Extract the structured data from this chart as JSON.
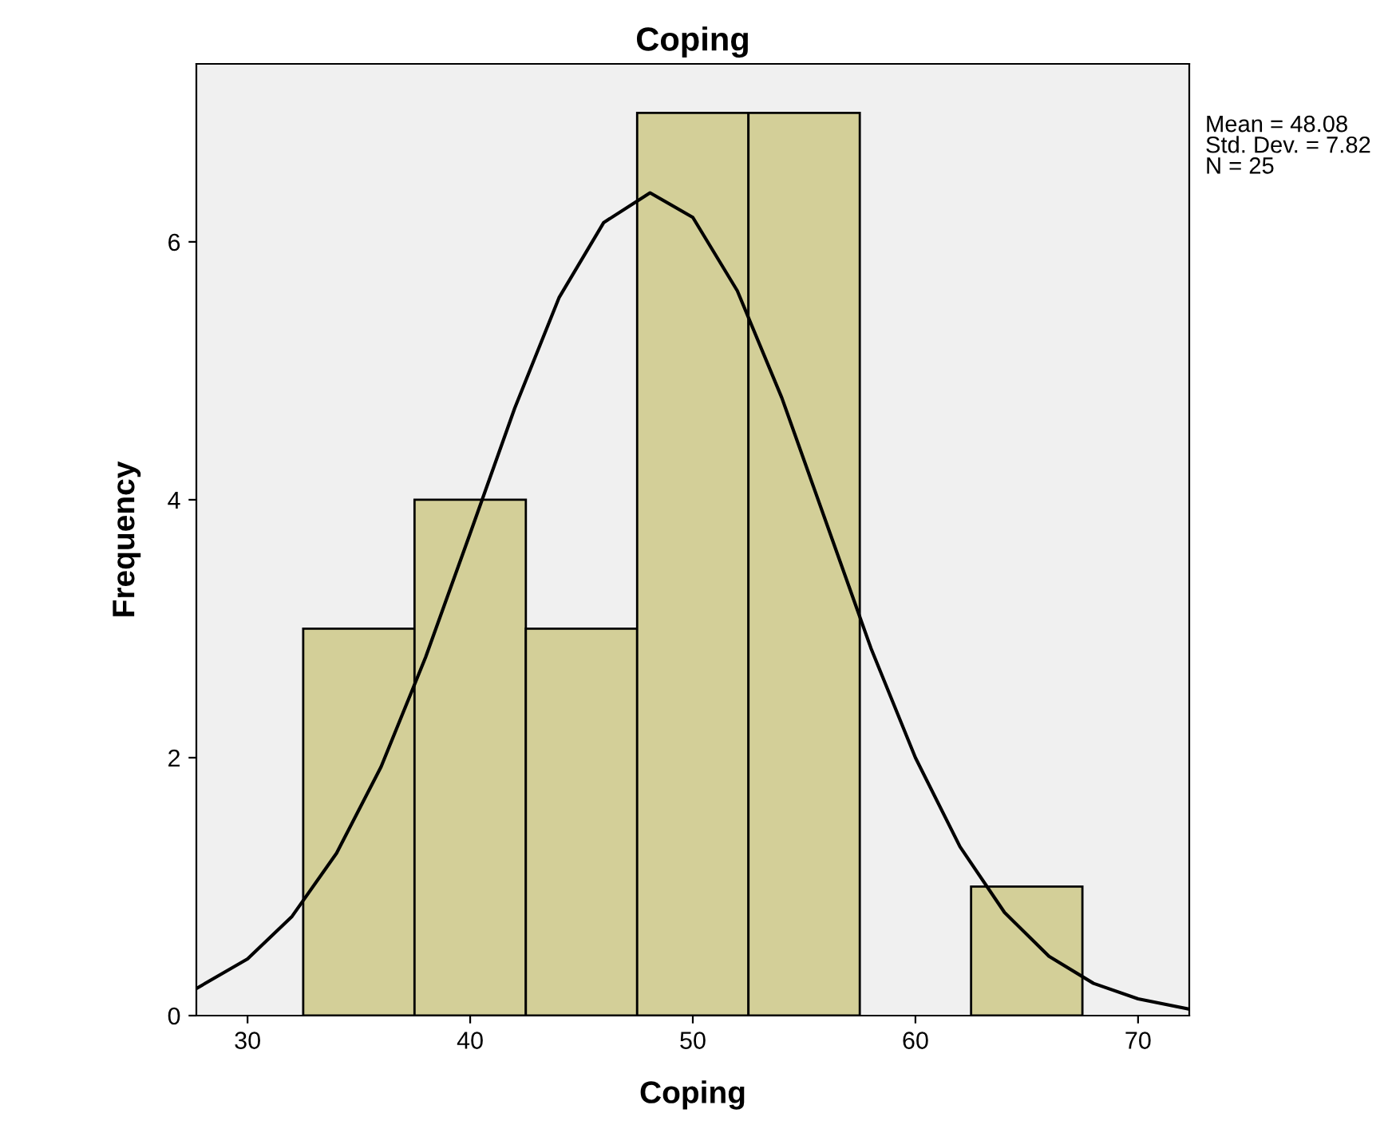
{
  "chart_data": {
    "type": "histogram",
    "title": "Coping",
    "xlabel": "Coping",
    "ylabel": "Frequency",
    "series": [
      {
        "bins": [
          32.5,
          37.5,
          42.5,
          47.5,
          52.5,
          57.5,
          62.5,
          67.5
        ],
        "values": [
          3,
          4,
          3,
          7,
          7,
          0,
          1
        ],
        "color": "#d3cf98"
      },
      {
        "type": "line",
        "color": "#000000",
        "x": [
          27.7,
          30,
          32,
          34,
          36,
          38,
          40,
          42,
          44,
          46,
          48.08,
          50,
          52,
          54,
          56,
          58,
          60,
          62,
          64,
          66,
          68,
          70,
          72.3
        ],
        "values": [
          0.21,
          0.44,
          0.77,
          1.26,
          1.93,
          2.78,
          3.74,
          4.71,
          5.57,
          6.15,
          6.38,
          6.19,
          5.62,
          4.79,
          3.82,
          2.85,
          2.0,
          1.31,
          0.8,
          0.46,
          0.25,
          0.13,
          0.05
        ]
      }
    ],
    "xlim": [
      27.7,
      72.3
    ],
    "ylim": [
      0,
      7.38
    ],
    "xticks": [
      30,
      40,
      50,
      60,
      70
    ],
    "yticks": [
      0,
      2,
      4,
      6
    ],
    "grid": false,
    "legend": false,
    "annotations": [
      "Mean = 48.08\nStd. Dev. = 7.82\nN = 25"
    ]
  }
}
